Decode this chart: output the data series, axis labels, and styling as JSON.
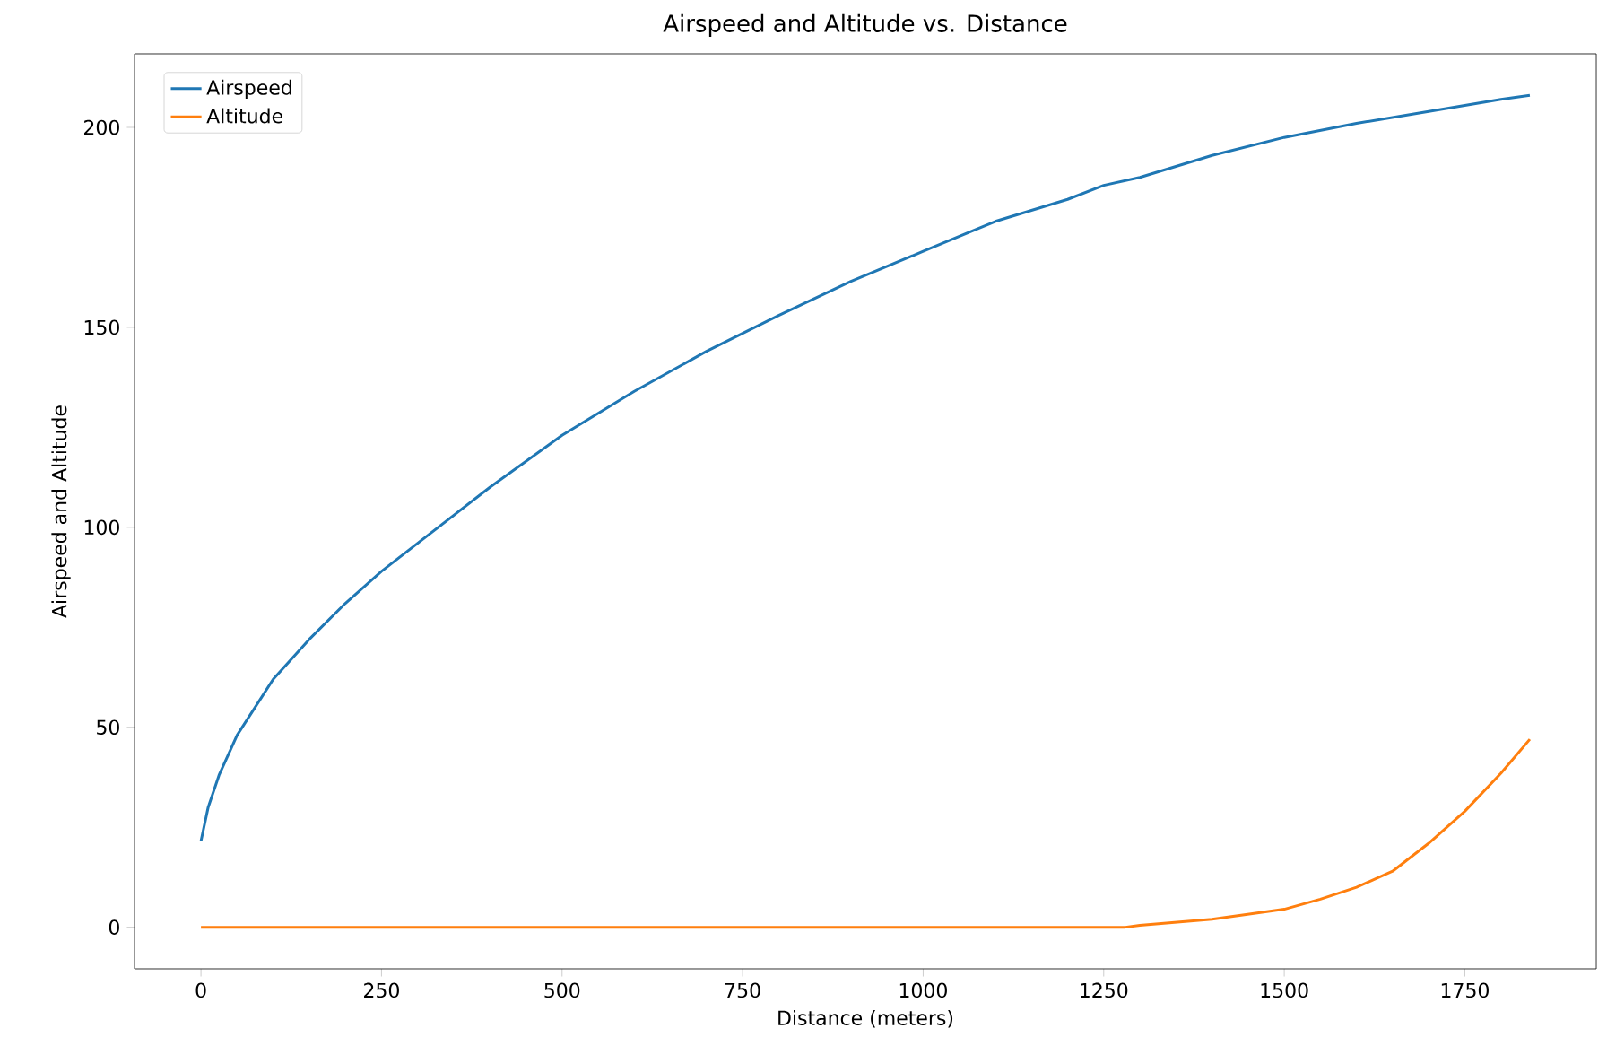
{
  "chart_data": {
    "type": "line",
    "title": "Airspeed and Altitude vs. Distance",
    "xlabel": "Distance (meters)",
    "ylabel": "Airspeed and Altitude",
    "xlim": [
      -92,
      1932
    ],
    "ylim": [
      -10.4,
      218.4
    ],
    "xticks": [
      0,
      250,
      500,
      750,
      1000,
      1250,
      1500,
      1750
    ],
    "yticks": [
      0,
      50,
      100,
      150,
      200
    ],
    "grid": false,
    "legend": "top left",
    "series": [
      {
        "name": "Airspeed",
        "color": "#1f77b4",
        "x": [
          0,
          10,
          25,
          50,
          100,
          150,
          200,
          250,
          300,
          400,
          500,
          600,
          700,
          800,
          900,
          1000,
          1100,
          1200,
          1250,
          1300,
          1400,
          1500,
          1600,
          1650,
          1700,
          1800,
          1840
        ],
        "values": [
          21.5,
          30,
          38,
          48,
          62,
          72,
          81,
          89,
          96,
          110,
          123,
          134,
          144,
          153,
          161.5,
          169,
          176.5,
          182,
          185.5,
          187.5,
          193,
          197.5,
          201,
          202.5,
          204,
          207,
          208
        ]
      },
      {
        "name": "Altitude",
        "color": "#ff7f0e",
        "x": [
          0,
          250,
          500,
          750,
          1000,
          1280,
          1300,
          1400,
          1500,
          1550,
          1600,
          1650,
          1700,
          1750,
          1800,
          1840
        ],
        "values": [
          0,
          0,
          0,
          0,
          0,
          0,
          0.5,
          2,
          4.5,
          7,
          10,
          14,
          21,
          29,
          38.5,
          47
        ]
      }
    ]
  }
}
